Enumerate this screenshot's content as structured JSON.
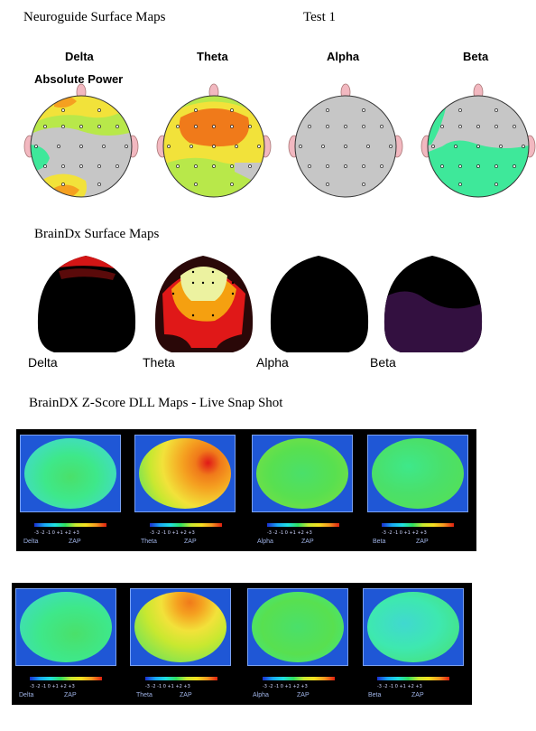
{
  "header": {
    "title": "Neuroguide Surface Maps",
    "test": "Test 1"
  },
  "neuroguide": {
    "bands": [
      "Delta",
      "Theta",
      "Alpha",
      "Beta"
    ],
    "measure": "Absolute Power"
  },
  "braindx": {
    "title": "BrainDx Surface Maps",
    "bands": [
      "Delta",
      "Theta",
      "Alpha",
      "Beta"
    ]
  },
  "zscore": {
    "title": "BrainDX Z-Score DLL Maps - Live",
    "subtitle": "Snap Shot",
    "bands": [
      "Delta",
      "Theta",
      "Alpha",
      "Beta"
    ],
    "zap": "ZAP",
    "scale": "-3 -2 -1  0  +1 +2 +3"
  }
}
